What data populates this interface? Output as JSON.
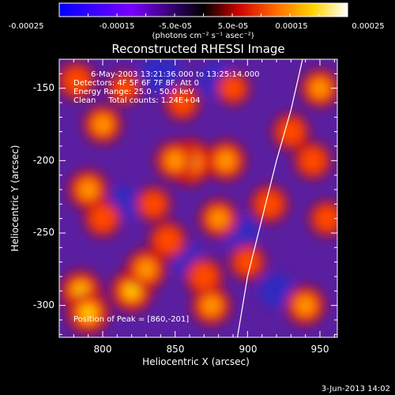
{
  "colorbar": {
    "tick_labels": [
      "-0.00025",
      "-0.00015",
      "-5.0e-05",
      "5.0e-05",
      "0.00015",
      "0.00025"
    ],
    "units": "(photons cm⁻² s⁻¹ asec⁻²)",
    "range": [
      -0.00025,
      0.00025
    ],
    "colors": [
      "#0000ff",
      "#7a00ff",
      "#000000",
      "#cc0000",
      "#ff6a00",
      "#ffd400",
      "#ffffff"
    ]
  },
  "chart_data": {
    "type": "heatmap",
    "title": "Reconstructed RHESSI Image",
    "xlabel": "Heliocentric X (arcsec)",
    "ylabel": "Heliocentric Y (arcsec)",
    "xlim": [
      770,
      962
    ],
    "ylim": [
      -322,
      -130
    ],
    "x_ticks": [
      800,
      850,
      900,
      950
    ],
    "y_ticks": [
      -150,
      -200,
      -250,
      -300
    ],
    "annotations": [
      "6-May-2003 13:21:36.000 to 13:25:14.000",
      "Detectors: 4F 5F 6F 7F 8F, Att 0",
      "Energy Range: 25.0 - 50.0 keV",
      "Clean     Total counts: 1.24E+04"
    ],
    "peak_label": "Position of Peak = [860,-201]",
    "peak": [
      860,
      -201
    ],
    "limb": [
      [
        938,
        -130
      ],
      [
        930,
        -165
      ],
      [
        920,
        -200
      ],
      [
        910,
        -240
      ],
      [
        900,
        -280
      ],
      [
        893,
        -322
      ]
    ],
    "blobs": [
      {
        "x": 782,
        "y": -145,
        "v": 0.7
      },
      {
        "x": 800,
        "y": -175,
        "v": 0.75
      },
      {
        "x": 790,
        "y": -220,
        "v": 0.8
      },
      {
        "x": 800,
        "y": -240,
        "v": 0.65
      },
      {
        "x": 785,
        "y": -290,
        "v": 0.9
      },
      {
        "x": 790,
        "y": -305,
        "v": 1.0
      },
      {
        "x": 820,
        "y": -290,
        "v": 0.95
      },
      {
        "x": 830,
        "y": -275,
        "v": 0.85
      },
      {
        "x": 845,
        "y": -255,
        "v": 0.7
      },
      {
        "x": 860,
        "y": -201,
        "v": 1.2
      },
      {
        "x": 850,
        "y": -200,
        "v": 0.8
      },
      {
        "x": 885,
        "y": -200,
        "v": 0.85
      },
      {
        "x": 880,
        "y": -240,
        "v": 0.75
      },
      {
        "x": 875,
        "y": -300,
        "v": 0.8
      },
      {
        "x": 870,
        "y": -280,
        "v": 0.7
      },
      {
        "x": 855,
        "y": -160,
        "v": 0.55
      },
      {
        "x": 900,
        "y": -270,
        "v": 0.6
      },
      {
        "x": 915,
        "y": -230,
        "v": 0.7
      },
      {
        "x": 930,
        "y": -180,
        "v": 0.65
      },
      {
        "x": 950,
        "y": -150,
        "v": 0.75
      },
      {
        "x": 945,
        "y": -200,
        "v": 0.65
      },
      {
        "x": 940,
        "y": -300,
        "v": 0.8
      },
      {
        "x": 955,
        "y": -240,
        "v": 0.6
      },
      {
        "x": 835,
        "y": -230,
        "v": 0.55
      },
      {
        "x": 815,
        "y": -150,
        "v": 0.45
      },
      {
        "x": 890,
        "y": -150,
        "v": 0.45
      }
    ],
    "dips": [
      {
        "x": 840,
        "y": -140,
        "v": 0.9
      },
      {
        "x": 880,
        "y": -145,
        "v": 0.7
      },
      {
        "x": 815,
        "y": -230,
        "v": 0.6
      },
      {
        "x": 895,
        "y": -250,
        "v": 0.65
      },
      {
        "x": 920,
        "y": -290,
        "v": 0.55
      },
      {
        "x": 860,
        "y": -270,
        "v": 0.5
      }
    ]
  },
  "footer": {
    "date": "3-Jun-2013 14:02"
  }
}
